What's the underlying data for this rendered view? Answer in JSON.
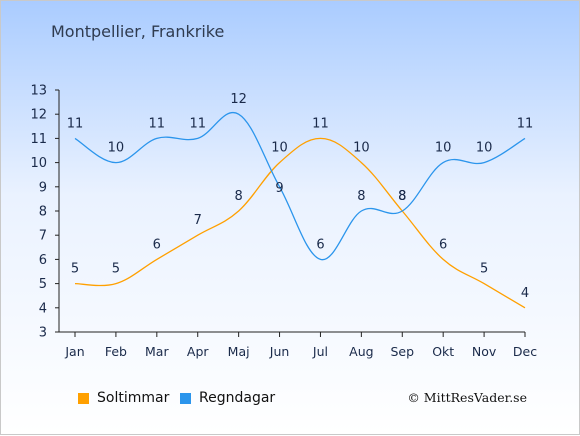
{
  "title": "Montpellier, Frankrike",
  "credit": "© MittResVader.se",
  "colors": {
    "sun": "#ffa000",
    "rain": "#2b95ec"
  },
  "chart_data": {
    "type": "line",
    "title": "Montpellier, Frankrike",
    "xlabel": "",
    "ylabel": "",
    "ylim": [
      3,
      13
    ],
    "yticks": [
      3,
      4,
      5,
      6,
      7,
      8,
      9,
      10,
      11,
      12,
      13
    ],
    "grid": false,
    "legend_position": "bottom-left",
    "categories": [
      "Jan",
      "Feb",
      "Mar",
      "Apr",
      "Maj",
      "Jun",
      "Jul",
      "Aug",
      "Sep",
      "Okt",
      "Nov",
      "Dec"
    ],
    "series": [
      {
        "name": "Soltimmar",
        "color": "#ffa000",
        "values": [
          5,
          5,
          6,
          7,
          8,
          10,
          11,
          10,
          8,
          6,
          5,
          4
        ]
      },
      {
        "name": "Regndagar",
        "color": "#2b95ec",
        "values": [
          11,
          10,
          11,
          11,
          12,
          9,
          6,
          8,
          8,
          10,
          10,
          11
        ]
      }
    ]
  }
}
